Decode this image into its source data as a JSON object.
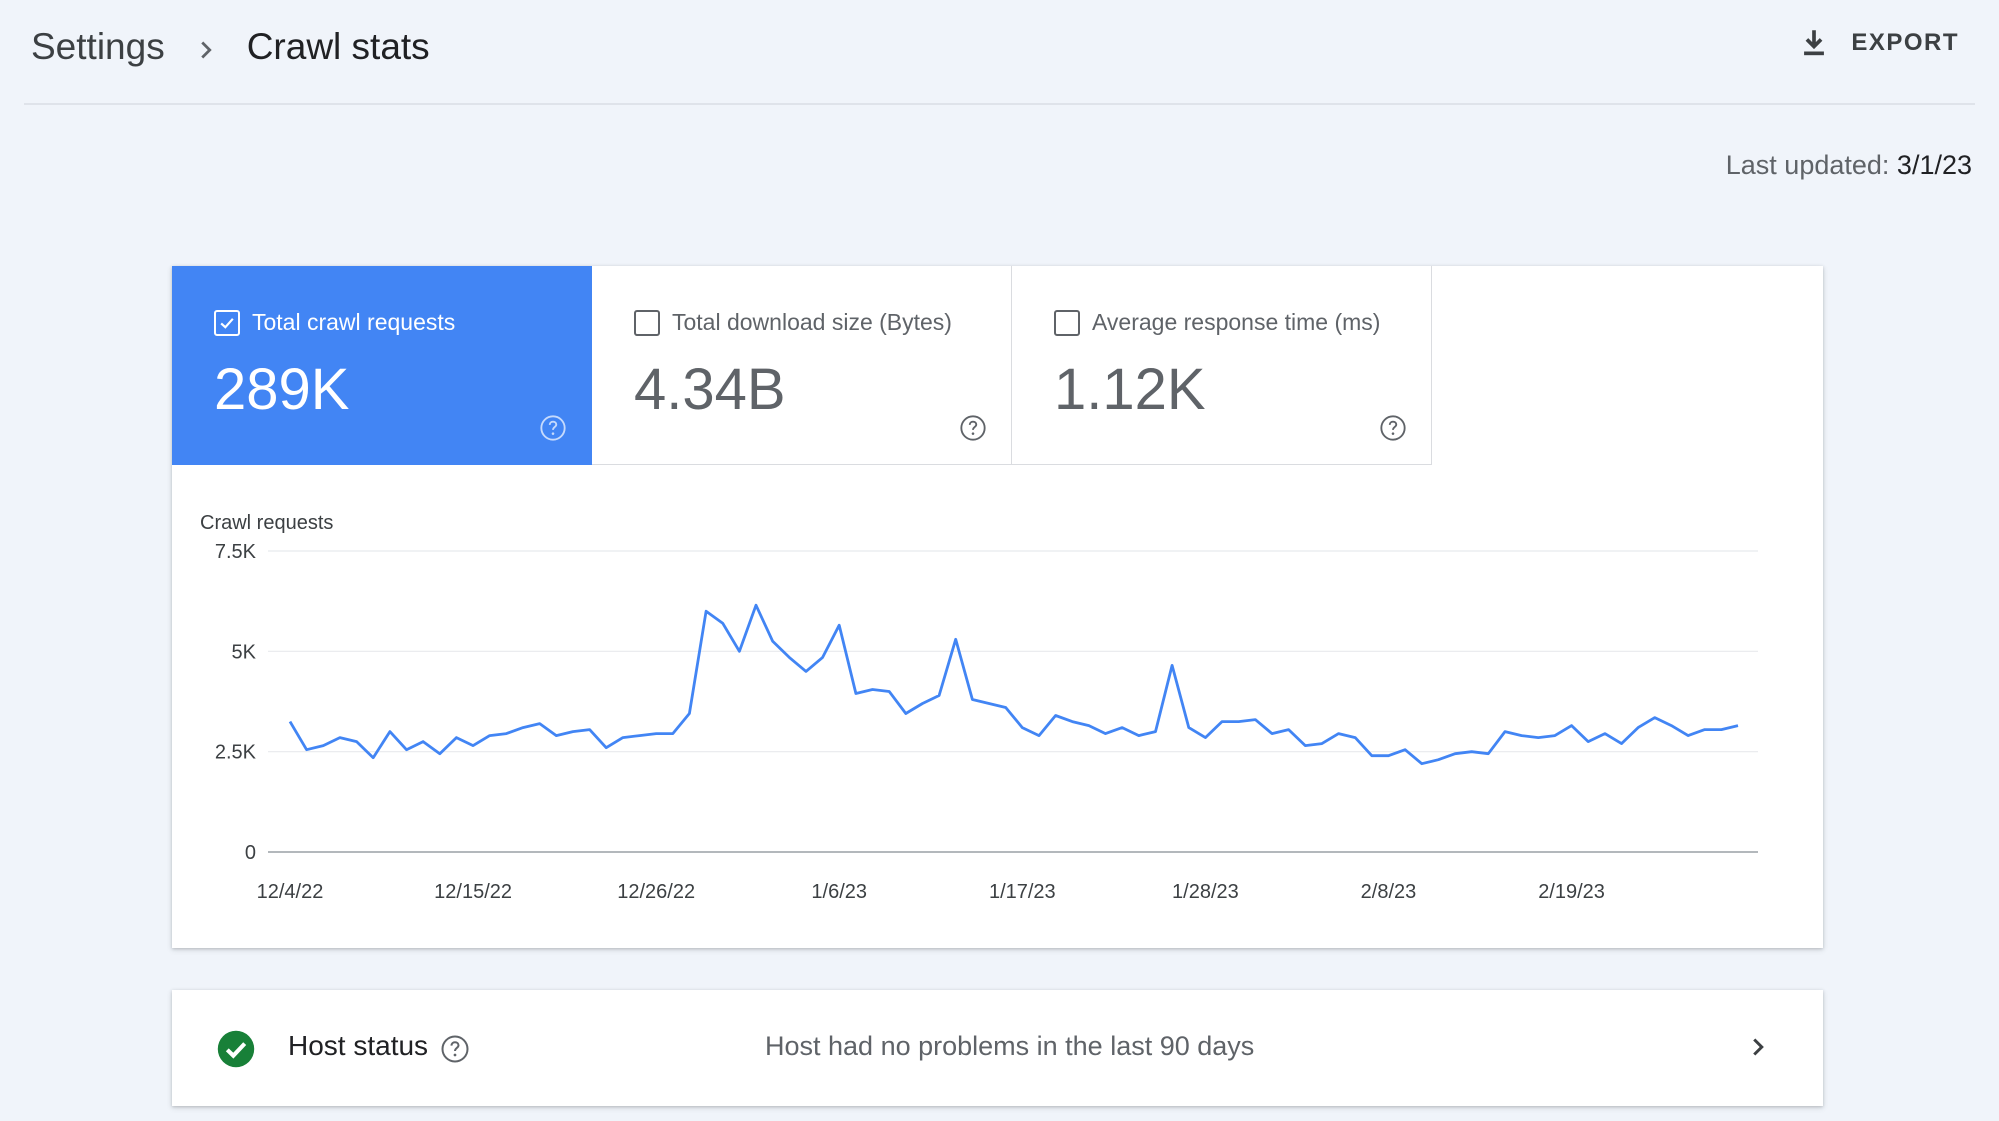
{
  "breadcrumb": {
    "root": "Settings",
    "current": "Crawl stats"
  },
  "toolbar": {
    "export_label": "EXPORT"
  },
  "last_updated": {
    "label": "Last updated:",
    "value": "3/1/23"
  },
  "metrics": [
    {
      "label": "Total crawl requests",
      "value": "289K",
      "checked": true
    },
    {
      "label": "Total download size (Bytes)",
      "value": "4.34B",
      "checked": false
    },
    {
      "label": "Average response time (ms)",
      "value": "1.12K",
      "checked": false
    }
  ],
  "colors": {
    "accent": "#4285f4",
    "line": "#4285f4",
    "ok": "#188038",
    "background": "#f0f4fa"
  },
  "host_status": {
    "title": "Host status",
    "message": "Host had no problems in the last 90 days"
  },
  "chart_data": {
    "type": "line",
    "ylabel": "Crawl requests",
    "ylim": [
      0,
      7500
    ],
    "yticks": [
      0,
      2500,
      5000,
      7500
    ],
    "ytick_labels": [
      "0",
      "2.5K",
      "5K",
      "7.5K"
    ],
    "xtick_labels": [
      "12/4/22",
      "12/15/22",
      "12/26/22",
      "1/6/23",
      "1/17/23",
      "1/28/23",
      "2/8/23",
      "2/19/23"
    ],
    "grid": true,
    "series": [
      {
        "values": [
          3250,
          2550,
          2650,
          2850,
          2750,
          2350,
          3000,
          2550,
          2750,
          2450,
          2850,
          2650,
          2900,
          2950,
          3100,
          3200,
          2900,
          3000,
          3050,
          2600,
          2850,
          2900,
          2950,
          2950,
          3450,
          6000,
          5700,
          5000,
          6150,
          5250,
          4850,
          4500,
          4850,
          5650,
          3950,
          4050,
          4000,
          3450,
          3700,
          3900,
          5300,
          3800,
          3700,
          3600,
          3100,
          2900,
          3400,
          3250,
          3150,
          2950,
          3100,
          2900,
          3000,
          4650,
          3100,
          2850,
          3250,
          3250,
          3300,
          2950,
          3050,
          2650,
          2700,
          2950,
          2850,
          2400,
          2400,
          2550,
          2200,
          2300,
          2450,
          2500,
          2450,
          3000,
          2900,
          2850,
          2900,
          3150,
          2750,
          2950,
          2700,
          3100,
          3350,
          3150,
          2900,
          3050,
          3050,
          3150
        ]
      }
    ]
  }
}
